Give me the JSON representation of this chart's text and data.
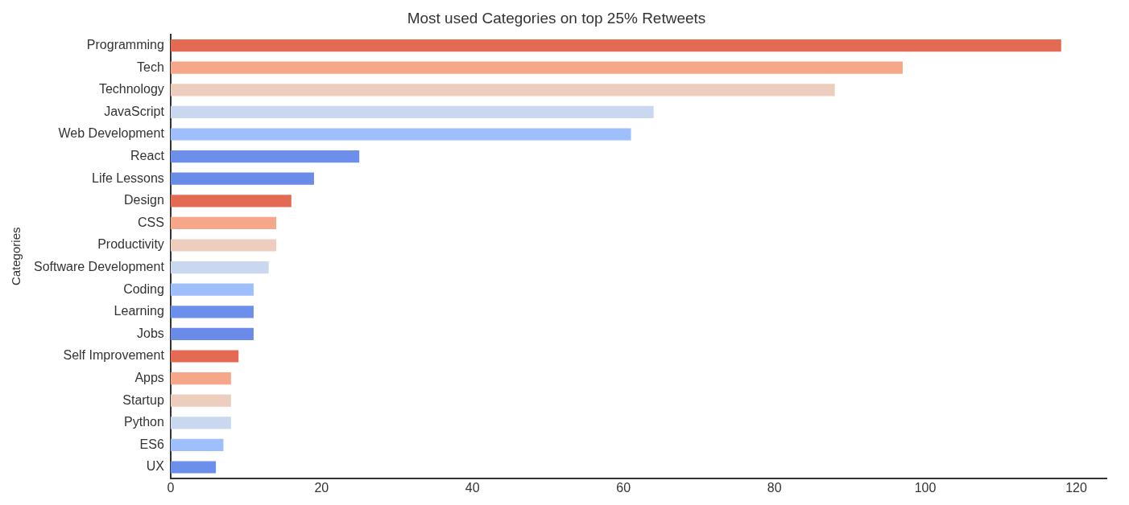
{
  "chart_data": {
    "type": "bar",
    "orientation": "horizontal",
    "title": "Most used Categories on top 25% Retweets",
    "ylabel": "Categories",
    "categories": [
      "Programming",
      "Tech",
      "Technology",
      "JavaScript",
      "Web Development",
      "React",
      "Life Lessons",
      "Design",
      "CSS",
      "Productivity",
      "Software Development",
      "Coding",
      "Learning",
      "Jobs",
      "Self Improvement",
      "Apps",
      "Startup",
      "Python",
      "ES6",
      "UX"
    ],
    "values": [
      118,
      97,
      88,
      64,
      61,
      25,
      19,
      16,
      14,
      14,
      13,
      11,
      11,
      11,
      9,
      8,
      8,
      8,
      7,
      6
    ],
    "colors": [
      "#e46a54",
      "#f6a789",
      "#eccdbe",
      "#cad8ef",
      "#9ebefc",
      "#6b8fea",
      "#6a8ce8",
      "#e46a54",
      "#f6a789",
      "#eccdbe",
      "#cad8ef",
      "#9ebefc",
      "#6b8fea",
      "#6a8ce8",
      "#e46a54",
      "#f6a789",
      "#eccdbe",
      "#cad8ef",
      "#9ebefc",
      "#6b8fea"
    ],
    "xlim": [
      0,
      124
    ],
    "xticks": [
      0,
      20,
      40,
      60,
      80,
      100,
      120
    ],
    "grid": false,
    "legend": false
  }
}
